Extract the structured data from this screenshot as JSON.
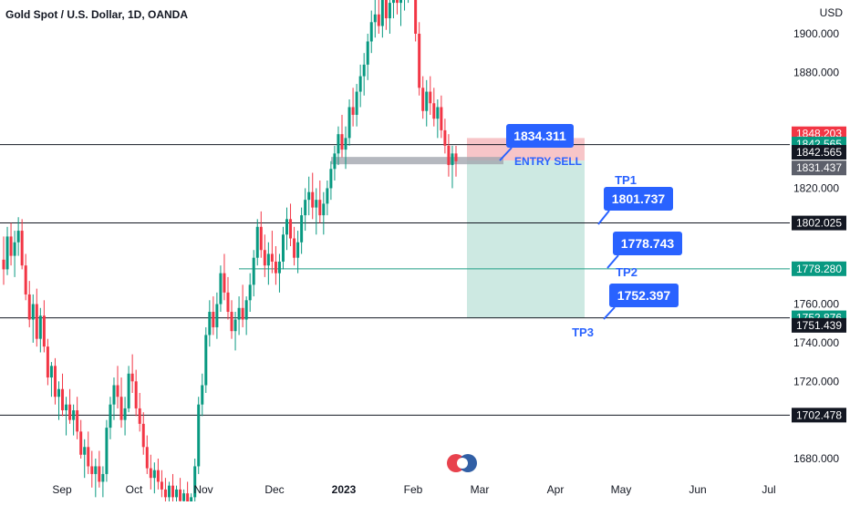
{
  "header": {
    "symbol_title": "Gold Spot / U.S. Dollar, 1D, OANDA",
    "currency": "USD"
  },
  "colors": {
    "up": "#089981",
    "down": "#f23645",
    "hline": "#131722",
    "tp2_line": "#1e9e85",
    "callout": "#2962ff",
    "callout_text": "#ffffff",
    "stop_zone": "#f7c5c8",
    "target_zone": "#cde9e2",
    "entry_bar": "#a3a6af",
    "axis_text": "#131722",
    "tag_dark": "#131722",
    "tag_grey": "#5d606b",
    "tag_red": "#f23645",
    "tag_green": "#089981"
  },
  "chart_data": {
    "type": "candlestick",
    "y_axis": {
      "ticks": [
        "1680.000",
        "1720.000",
        "1740.000",
        "1760.000",
        "1820.000",
        "1880.000",
        "1900.000"
      ],
      "range": [
        1670,
        1920
      ]
    },
    "x_axis": {
      "ticks": [
        "Sep",
        "Oct",
        "Nov",
        "Dec",
        "2023",
        "Feb",
        "Mar",
        "Apr",
        "May",
        "Jun",
        "Jul"
      ]
    },
    "horizontal_lines": [
      {
        "price": 1842.565,
        "color": "hline"
      },
      {
        "price": 1802.025,
        "color": "hline"
      },
      {
        "price": 1778.28,
        "color": "tp2_line"
      },
      {
        "price": 1752.876,
        "color": "hline"
      },
      {
        "price": 1702.478,
        "color": "hline"
      }
    ],
    "price_tags": [
      {
        "label": "1848.203",
        "price": 1848.2,
        "color": "tag_red"
      },
      {
        "label": "1842.565",
        "price": 1842.9,
        "color": "tag_green"
      },
      {
        "label": "1842.565",
        "price": 1838.6,
        "color": "tag_dark"
      },
      {
        "label": "1831.437",
        "price": 1830.5,
        "color": "tag_grey"
      },
      {
        "label": "1802.025",
        "price": 1802.0,
        "color": "tag_dark"
      },
      {
        "label": "1778.280",
        "price": 1778.3,
        "color": "tag_green"
      },
      {
        "label": "1752.876",
        "price": 1752.9,
        "color": "tag_green"
      },
      {
        "label": "1751.439",
        "price": 1749.0,
        "color": "tag_dark"
      },
      {
        "label": "1702.478",
        "price": 1702.5,
        "color": "tag_dark"
      }
    ],
    "trade_setup": {
      "entry_label": "ENTRY SELL",
      "entry_price": 1834.311,
      "stop_price": 1846.0,
      "target_price": 1752.9,
      "targets": [
        {
          "name": "TP1",
          "price": 1801.737
        },
        {
          "name": "TP2",
          "price": 1778.743
        },
        {
          "name": "TP3",
          "price": 1752.397
        }
      ]
    },
    "candles": [
      [
        1783,
        1795,
        1770,
        1778
      ],
      [
        1778,
        1800,
        1775,
        1795
      ],
      [
        1795,
        1802,
        1780,
        1785
      ],
      [
        1785,
        1798,
        1774,
        1792
      ],
      [
        1792,
        1805,
        1785,
        1798
      ],
      [
        1798,
        1804,
        1778,
        1780
      ],
      [
        1780,
        1786,
        1762,
        1765
      ],
      [
        1765,
        1772,
        1748,
        1752
      ],
      [
        1752,
        1765,
        1740,
        1760
      ],
      [
        1760,
        1768,
        1738,
        1742
      ],
      [
        1742,
        1758,
        1735,
        1754
      ],
      [
        1754,
        1762,
        1735,
        1738
      ],
      [
        1738,
        1742,
        1718,
        1722
      ],
      [
        1722,
        1730,
        1712,
        1728
      ],
      [
        1728,
        1732,
        1708,
        1712
      ],
      [
        1712,
        1720,
        1700,
        1716
      ],
      [
        1716,
        1724,
        1702,
        1705
      ],
      [
        1705,
        1712,
        1692,
        1708
      ],
      [
        1708,
        1716,
        1698,
        1700
      ],
      [
        1700,
        1708,
        1692,
        1705
      ],
      [
        1705,
        1712,
        1690,
        1694
      ],
      [
        1694,
        1700,
        1680,
        1682
      ],
      [
        1682,
        1690,
        1670,
        1686
      ],
      [
        1686,
        1694,
        1672,
        1676
      ],
      [
        1676,
        1684,
        1665,
        1672
      ],
      [
        1672,
        1680,
        1660,
        1676
      ],
      [
        1676,
        1684,
        1665,
        1668
      ],
      [
        1668,
        1676,
        1660,
        1672
      ],
      [
        1672,
        1700,
        1668,
        1696
      ],
      [
        1696,
        1712,
        1690,
        1708
      ],
      [
        1708,
        1722,
        1700,
        1718
      ],
      [
        1718,
        1728,
        1706,
        1712
      ],
      [
        1712,
        1722,
        1696,
        1700
      ],
      [
        1700,
        1712,
        1692,
        1706
      ],
      [
        1706,
        1728,
        1704,
        1724
      ],
      [
        1724,
        1734,
        1714,
        1720
      ],
      [
        1720,
        1726,
        1702,
        1706
      ],
      [
        1706,
        1714,
        1694,
        1698
      ],
      [
        1698,
        1704,
        1682,
        1686
      ],
      [
        1686,
        1692,
        1672,
        1675
      ],
      [
        1675,
        1682,
        1664,
        1670
      ],
      [
        1670,
        1678,
        1662,
        1674
      ],
      [
        1674,
        1680,
        1664,
        1668
      ],
      [
        1668,
        1674,
        1660,
        1664
      ],
      [
        1664,
        1670,
        1656,
        1660
      ],
      [
        1660,
        1668,
        1652,
        1666
      ],
      [
        1666,
        1672,
        1656,
        1660
      ],
      [
        1660,
        1666,
        1650,
        1664
      ],
      [
        1664,
        1670,
        1655,
        1658
      ],
      [
        1658,
        1664,
        1648,
        1662
      ],
      [
        1662,
        1668,
        1652,
        1656
      ],
      [
        1656,
        1662,
        1648,
        1660
      ],
      [
        1660,
        1680,
        1656,
        1676
      ],
      [
        1676,
        1712,
        1672,
        1708
      ],
      [
        1708,
        1724,
        1702,
        1718
      ],
      [
        1718,
        1748,
        1714,
        1744
      ],
      [
        1744,
        1762,
        1738,
        1756
      ],
      [
        1756,
        1764,
        1744,
        1748
      ],
      [
        1748,
        1766,
        1742,
        1760
      ],
      [
        1760,
        1780,
        1756,
        1776
      ],
      [
        1776,
        1786,
        1762,
        1766
      ],
      [
        1766,
        1774,
        1752,
        1756
      ],
      [
        1756,
        1762,
        1742,
        1746
      ],
      [
        1746,
        1756,
        1736,
        1752
      ],
      [
        1752,
        1764,
        1744,
        1758
      ],
      [
        1758,
        1770,
        1748,
        1752
      ],
      [
        1752,
        1764,
        1744,
        1762
      ],
      [
        1762,
        1776,
        1756,
        1770
      ],
      [
        1770,
        1788,
        1764,
        1784
      ],
      [
        1784,
        1804,
        1780,
        1800
      ],
      [
        1800,
        1808,
        1784,
        1788
      ],
      [
        1788,
        1796,
        1774,
        1780
      ],
      [
        1780,
        1792,
        1770,
        1786
      ],
      [
        1786,
        1798,
        1776,
        1782
      ],
      [
        1782,
        1790,
        1770,
        1776
      ],
      [
        1776,
        1786,
        1766,
        1782
      ],
      [
        1782,
        1800,
        1778,
        1796
      ],
      [
        1796,
        1810,
        1788,
        1804
      ],
      [
        1804,
        1812,
        1790,
        1794
      ],
      [
        1794,
        1800,
        1780,
        1784
      ],
      [
        1784,
        1798,
        1776,
        1792
      ],
      [
        1792,
        1810,
        1786,
        1806
      ],
      [
        1806,
        1820,
        1798,
        1814
      ],
      [
        1814,
        1826,
        1806,
        1818
      ],
      [
        1818,
        1828,
        1804,
        1810
      ],
      [
        1810,
        1820,
        1796,
        1814
      ],
      [
        1814,
        1824,
        1802,
        1806
      ],
      [
        1806,
        1818,
        1796,
        1812
      ],
      [
        1812,
        1824,
        1806,
        1820
      ],
      [
        1820,
        1834,
        1814,
        1830
      ],
      [
        1830,
        1842,
        1824,
        1838
      ],
      [
        1838,
        1852,
        1832,
        1848
      ],
      [
        1848,
        1858,
        1836,
        1840
      ],
      [
        1840,
        1852,
        1830,
        1846
      ],
      [
        1846,
        1866,
        1842,
        1862
      ],
      [
        1862,
        1872,
        1852,
        1858
      ],
      [
        1858,
        1874,
        1852,
        1870
      ],
      [
        1870,
        1884,
        1862,
        1878
      ],
      [
        1878,
        1890,
        1868,
        1884
      ],
      [
        1884,
        1900,
        1876,
        1896
      ],
      [
        1896,
        1912,
        1890,
        1906
      ],
      [
        1906,
        1918,
        1898,
        1910
      ],
      [
        1910,
        1920,
        1900,
        1904
      ],
      [
        1904,
        1922,
        1898,
        1918
      ],
      [
        1918,
        1924,
        1902,
        1908
      ],
      [
        1908,
        1922,
        1900,
        1916
      ],
      [
        1916,
        1930,
        1908,
        1922
      ],
      [
        1922,
        1932,
        1910,
        1916
      ],
      [
        1916,
        1926,
        1904,
        1920
      ],
      [
        1920,
        1934,
        1912,
        1926
      ],
      [
        1926,
        1938,
        1916,
        1928
      ],
      [
        1928,
        1940,
        1918,
        1922
      ],
      [
        1922,
        1930,
        1896,
        1900
      ],
      [
        1900,
        1906,
        1868,
        1872
      ],
      [
        1872,
        1878,
        1856,
        1860
      ],
      [
        1860,
        1876,
        1852,
        1870
      ],
      [
        1870,
        1878,
        1858,
        1864
      ],
      [
        1864,
        1872,
        1852,
        1856
      ],
      [
        1856,
        1866,
        1846,
        1862
      ],
      [
        1862,
        1868,
        1846,
        1850
      ],
      [
        1850,
        1856,
        1838,
        1842
      ],
      [
        1842,
        1848,
        1826,
        1832
      ],
      [
        1832,
        1842,
        1820,
        1838
      ],
      [
        1838,
        1842,
        1826,
        1834
      ]
    ]
  },
  "watermark": {
    "name": "logo-badge-icon"
  }
}
